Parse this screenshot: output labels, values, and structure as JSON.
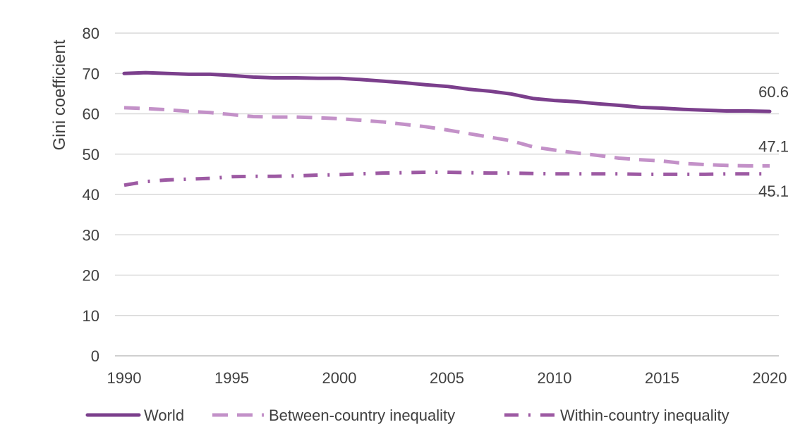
{
  "chart_data": {
    "type": "line",
    "title": "",
    "xlabel": "",
    "ylabel": "Gini coefficient",
    "xlim": [
      1990,
      2020
    ],
    "ylim": [
      0,
      80
    ],
    "yticks": [
      0,
      10,
      20,
      30,
      40,
      50,
      60,
      70,
      80
    ],
    "xticks": [
      1990,
      1995,
      2000,
      2005,
      2010,
      2015,
      2020
    ],
    "grid": true,
    "legend_position": "bottom",
    "x": [
      1990,
      1991,
      1992,
      1993,
      1994,
      1995,
      1996,
      1997,
      1998,
      1999,
      2000,
      2001,
      2002,
      2003,
      2004,
      2005,
      2006,
      2007,
      2008,
      2009,
      2010,
      2011,
      2012,
      2013,
      2014,
      2015,
      2016,
      2017,
      2018,
      2019,
      2020
    ],
    "series": [
      {
        "name": "World",
        "color": "#7b3f8c",
        "style": "solid",
        "values": [
          70.0,
          70.2,
          70.0,
          69.8,
          69.8,
          69.5,
          69.1,
          68.9,
          68.9,
          68.8,
          68.8,
          68.5,
          68.1,
          67.7,
          67.2,
          66.8,
          66.1,
          65.6,
          64.9,
          63.8,
          63.3,
          63.0,
          62.5,
          62.1,
          61.6,
          61.4,
          61.1,
          60.9,
          60.7,
          60.7,
          60.6
        ]
      },
      {
        "name": "Between-country inequality",
        "color": "#c391c8",
        "style": "dashed",
        "values": [
          61.5,
          61.3,
          61.0,
          60.6,
          60.3,
          59.8,
          59.3,
          59.2,
          59.2,
          59.0,
          58.8,
          58.4,
          58.0,
          57.4,
          56.8,
          56.0,
          55.1,
          54.2,
          53.3,
          51.8,
          51.0,
          50.3,
          49.7,
          49.0,
          48.6,
          48.3,
          47.7,
          47.4,
          47.2,
          47.1,
          47.1
        ]
      },
      {
        "name": "Within-country inequality",
        "color": "#9d5aa3",
        "style": "dashdot",
        "values": [
          42.3,
          43.2,
          43.6,
          43.8,
          44.0,
          44.4,
          44.5,
          44.5,
          44.6,
          44.8,
          44.9,
          45.1,
          45.3,
          45.4,
          45.5,
          45.5,
          45.4,
          45.3,
          45.3,
          45.2,
          45.1,
          45.1,
          45.1,
          45.1,
          45.0,
          45.0,
          45.0,
          45.0,
          45.1,
          45.1,
          45.1
        ]
      }
    ],
    "annotations": [
      {
        "series": "World",
        "text": "60.6"
      },
      {
        "series": "Between-country inequality",
        "text": "47.1"
      },
      {
        "series": "Within-country inequality",
        "text": "45.1"
      }
    ]
  }
}
